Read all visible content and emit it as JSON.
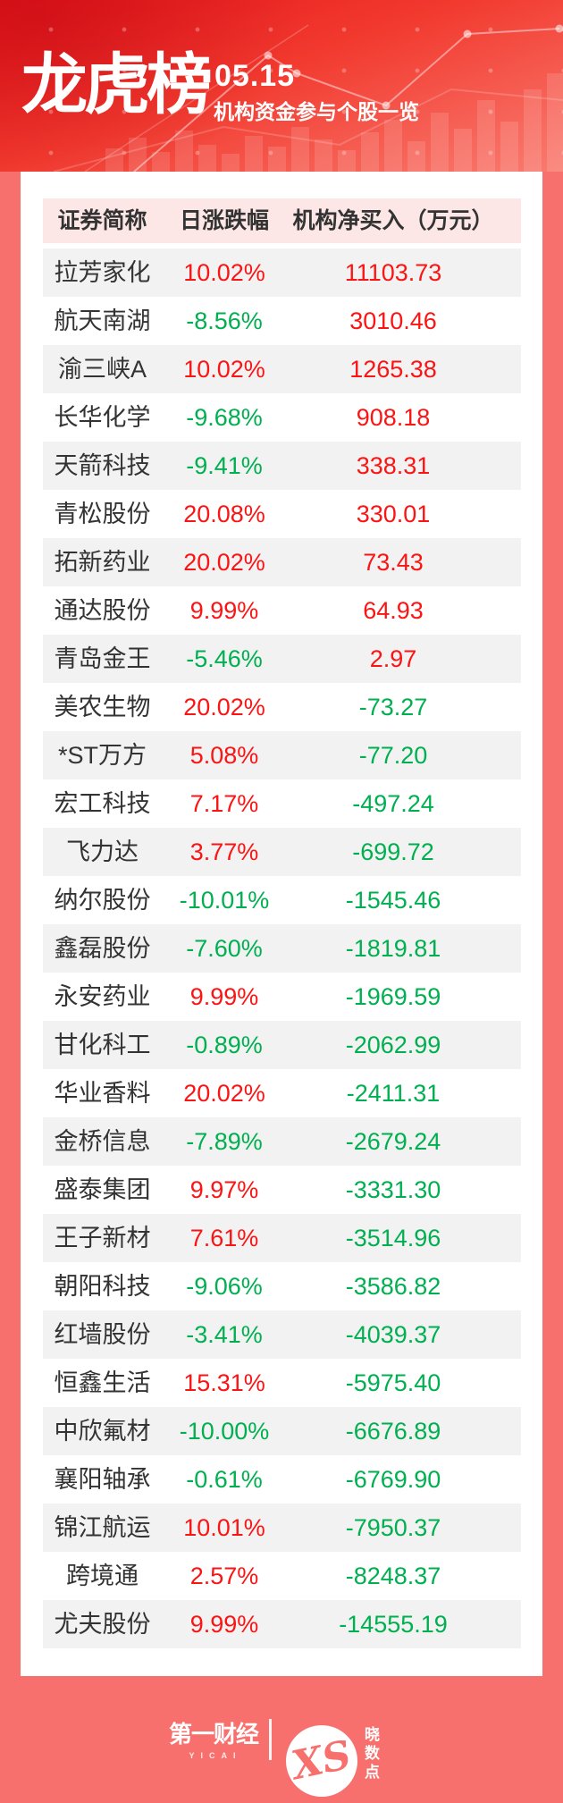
{
  "header": {
    "title": "龙虎榜",
    "date": "05.15",
    "subtitle": "机构资金参与个股一览"
  },
  "chart_data": {
    "type": "table",
    "title": "龙虎榜 05.15",
    "subtitle": "机构资金参与个股一览",
    "columns": [
      "证券简称",
      "日涨跌幅",
      "机构净买入（万元）"
    ],
    "color_rule": "values starting with '-' render green (down), others red (up)",
    "rows": [
      {
        "name": "拉芳家化",
        "change": "10.02%",
        "net": "11103.73"
      },
      {
        "name": "航天南湖",
        "change": "-8.56%",
        "net": "3010.46"
      },
      {
        "name": "渝三峡A",
        "change": "10.02%",
        "net": "1265.38"
      },
      {
        "name": "长华化学",
        "change": "-9.68%",
        "net": "908.18"
      },
      {
        "name": "天箭科技",
        "change": "-9.41%",
        "net": "338.31"
      },
      {
        "name": "青松股份",
        "change": "20.08%",
        "net": "330.01"
      },
      {
        "name": "拓新药业",
        "change": "20.02%",
        "net": "73.43"
      },
      {
        "name": "通达股份",
        "change": "9.99%",
        "net": "64.93"
      },
      {
        "name": "青岛金王",
        "change": "-5.46%",
        "net": "2.97"
      },
      {
        "name": "美农生物",
        "change": "20.02%",
        "net": "-73.27"
      },
      {
        "name": "*ST万方",
        "change": "5.08%",
        "net": "-77.20"
      },
      {
        "name": "宏工科技",
        "change": "7.17%",
        "net": "-497.24"
      },
      {
        "name": "飞力达",
        "change": "3.77%",
        "net": "-699.72"
      },
      {
        "name": "纳尔股份",
        "change": "-10.01%",
        "net": "-1545.46"
      },
      {
        "name": "鑫磊股份",
        "change": "-7.60%",
        "net": "-1819.81"
      },
      {
        "name": "永安药业",
        "change": "9.99%",
        "net": "-1969.59"
      },
      {
        "name": "甘化科工",
        "change": "-0.89%",
        "net": "-2062.99"
      },
      {
        "name": "华业香料",
        "change": "20.02%",
        "net": "-2411.31"
      },
      {
        "name": "金桥信息",
        "change": "-7.89%",
        "net": "-2679.24"
      },
      {
        "name": "盛泰集团",
        "change": "9.97%",
        "net": "-3331.30"
      },
      {
        "name": "王子新材",
        "change": "7.61%",
        "net": "-3514.96"
      },
      {
        "name": "朝阳科技",
        "change": "-9.06%",
        "net": "-3586.82"
      },
      {
        "name": "红墙股份",
        "change": "-3.41%",
        "net": "-4039.37"
      },
      {
        "name": "恒鑫生活",
        "change": "15.31%",
        "net": "-5975.40"
      },
      {
        "name": "中欣氟材",
        "change": "-10.00%",
        "net": "-6676.89"
      },
      {
        "name": "襄阳轴承",
        "change": "-0.61%",
        "net": "-6769.90"
      },
      {
        "name": "锦江航运",
        "change": "10.01%",
        "net": "-7950.37"
      },
      {
        "name": "跨境通",
        "change": "2.57%",
        "net": "-8248.37"
      },
      {
        "name": "尤夫股份",
        "change": "9.99%",
        "net": "-14555.19"
      }
    ]
  },
  "footer": {
    "brand": "第一财经",
    "brand_sub": "YICAI",
    "monogram": "XS",
    "partner": "晓数点"
  },
  "colors": {
    "up_red": "#fb1414",
    "down_green": "#00b050",
    "page_bg": "#f7706e",
    "header_pink": "#fce7e6",
    "row_gray": "#f2f2f2"
  }
}
